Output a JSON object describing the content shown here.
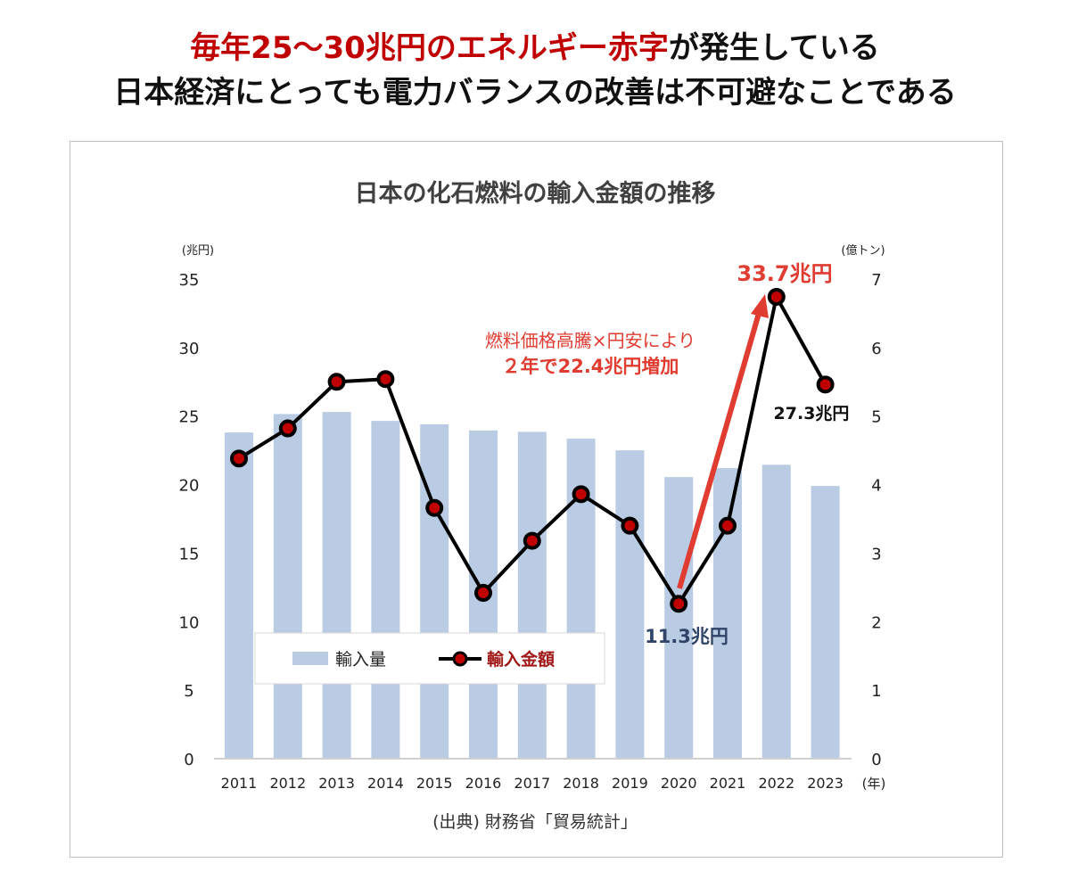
{
  "headline": {
    "line1_red": "毎年25〜30兆円のエネルギー赤字",
    "line1_black": "が発生している",
    "line2": "日本経済にとっても電力バランスの改善は不可避なことである"
  },
  "chart_data": {
    "type": "bar+line",
    "title": "日本の化石燃料の輸入金額の推移",
    "categories": [
      "2011",
      "2012",
      "2013",
      "2014",
      "2015",
      "2016",
      "2017",
      "2018",
      "2019",
      "2020",
      "2021",
      "2022",
      "2023"
    ],
    "x_unit": "(年)",
    "left_axis": {
      "unit": "(兆円)",
      "range": [
        0,
        35
      ],
      "ticks": [
        "0",
        "5",
        "10",
        "15",
        "20",
        "25",
        "30",
        "35"
      ]
    },
    "right_axis": {
      "unit": "(億トン)",
      "range": [
        0,
        7
      ],
      "ticks": [
        "0",
        "1",
        "2",
        "3",
        "4",
        "5",
        "6",
        "7"
      ]
    },
    "series": [
      {
        "name": "輸入量",
        "type": "bar",
        "axis": "right",
        "color": "#b9cce4",
        "values": [
          4.76,
          5.03,
          5.06,
          4.93,
          4.88,
          4.79,
          4.77,
          4.67,
          4.5,
          4.11,
          4.24,
          4.29,
          3.98
        ]
      },
      {
        "name": "輸入金額",
        "type": "line",
        "axis": "left",
        "color": "#000000",
        "marker_color": "#c00000",
        "values": [
          21.9,
          24.1,
          27.5,
          27.7,
          18.3,
          12.1,
          15.9,
          19.3,
          17.0,
          11.3,
          17.0,
          33.7,
          27.3
        ]
      }
    ],
    "annotations": {
      "peak": "33.7兆円",
      "latest": "27.3兆円",
      "low": "11.3兆円",
      "note_line1": "燃料価格高騰×円安により",
      "note_line2": "２年で22.4兆円増加",
      "accent": "#e03c31",
      "low_color": "#2f4468"
    },
    "legend": "inside-bottom-left",
    "grid": false,
    "source": "(出典) 財務省「貿易統計」"
  }
}
